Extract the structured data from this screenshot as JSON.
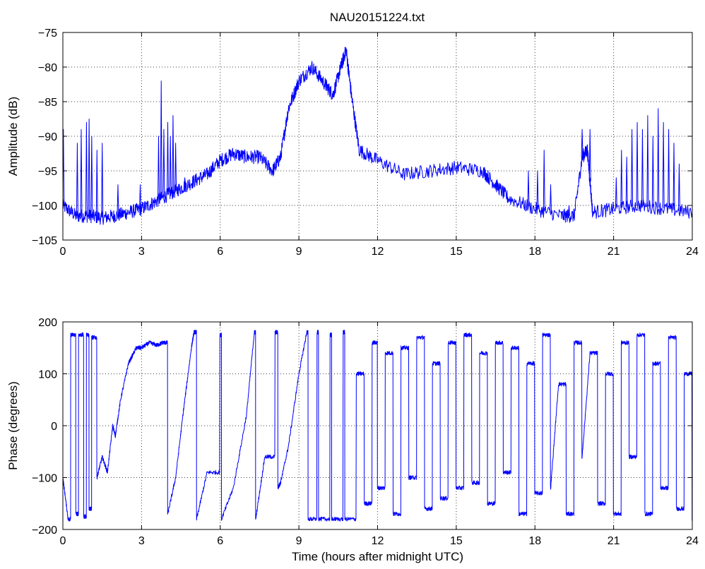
{
  "figure": {
    "title": "NAU20151224.txt",
    "line_color": "#0000ff"
  },
  "chart_data": [
    {
      "type": "line",
      "title": "NAU20151224.txt",
      "xlabel": "",
      "ylabel": "Amplitude (dB)",
      "xlim": [
        0,
        24
      ],
      "ylim": [
        -105,
        -75
      ],
      "xticks": [
        0,
        3,
        6,
        9,
        12,
        15,
        18,
        21,
        24
      ],
      "yticks": [
        -105,
        -100,
        -95,
        -90,
        -85,
        -80,
        -75
      ],
      "xtick_labels": [
        "0",
        "3",
        "6",
        "9",
        "12",
        "15",
        "18",
        "21",
        "24"
      ],
      "ytick_labels": [
        "−105",
        "−100",
        "−95",
        "−90",
        "−85",
        "−80",
        "−75"
      ],
      "grid": true,
      "series": [
        {
          "color": "#0000ff",
          "x": [
            0,
            0.5,
            1,
            1.5,
            2,
            2.5,
            3,
            3.5,
            4,
            4.5,
            5,
            5.5,
            6,
            6.5,
            7,
            7.5,
            8,
            8.3,
            8.6,
            9,
            9.5,
            10,
            10.3,
            10.6,
            10.8,
            11,
            11.3,
            12,
            13,
            14,
            15,
            16,
            16.5,
            17,
            18,
            19,
            19.5,
            19.8,
            20,
            20.2,
            21,
            22,
            23,
            24
          ],
          "y": [
            -100,
            -101.5,
            -101.5,
            -101.8,
            -101.5,
            -101,
            -100.5,
            -99.5,
            -98.5,
            -97.5,
            -96.5,
            -95.5,
            -93.5,
            -92.5,
            -93,
            -93,
            -95,
            -93,
            -86,
            -82,
            -80,
            -82.5,
            -84,
            -80,
            -77.5,
            -84,
            -92,
            -93.5,
            -95.5,
            -95,
            -94.5,
            -95,
            -97,
            -99,
            -100.5,
            -101.5,
            -101.5,
            -93,
            -92,
            -101,
            -100.5,
            -100,
            -100.5,
            -101
          ],
          "noise_band": 1,
          "spikes": [
            {
              "x": 0.02,
              "y": -89
            },
            {
              "x": 0.55,
              "y": -91
            },
            {
              "x": 0.7,
              "y": -89
            },
            {
              "x": 0.9,
              "y": -88
            },
            {
              "x": 1.0,
              "y": -87.5
            },
            {
              "x": 1.1,
              "y": -90
            },
            {
              "x": 1.3,
              "y": -92
            },
            {
              "x": 1.5,
              "y": -91
            },
            {
              "x": 2.1,
              "y": -97
            },
            {
              "x": 2.95,
              "y": -97
            },
            {
              "x": 3.65,
              "y": -90
            },
            {
              "x": 3.75,
              "y": -82
            },
            {
              "x": 3.85,
              "y": -89
            },
            {
              "x": 4.0,
              "y": -88
            },
            {
              "x": 4.1,
              "y": -90
            },
            {
              "x": 4.2,
              "y": -87
            },
            {
              "x": 4.3,
              "y": -91
            },
            {
              "x": 4.65,
              "y": -96
            },
            {
              "x": 17.75,
              "y": -95
            },
            {
              "x": 18.1,
              "y": -95
            },
            {
              "x": 18.35,
              "y": -92
            },
            {
              "x": 18.6,
              "y": -97
            },
            {
              "x": 19.3,
              "y": -100
            },
            {
              "x": 19.8,
              "y": -89
            },
            {
              "x": 20.1,
              "y": -89
            },
            {
              "x": 21.1,
              "y": -96
            },
            {
              "x": 21.3,
              "y": -92
            },
            {
              "x": 21.5,
              "y": -93
            },
            {
              "x": 21.7,
              "y": -89
            },
            {
              "x": 21.9,
              "y": -88
            },
            {
              "x": 22.1,
              "y": -89
            },
            {
              "x": 22.3,
              "y": -87
            },
            {
              "x": 22.5,
              "y": -90
            },
            {
              "x": 22.7,
              "y": -86
            },
            {
              "x": 22.9,
              "y": -88
            },
            {
              "x": 23.1,
              "y": -89
            },
            {
              "x": 23.3,
              "y": -91
            },
            {
              "x": 23.5,
              "y": -94
            }
          ]
        }
      ]
    },
    {
      "type": "line",
      "title": "",
      "xlabel": "Time (hours after midnight UTC)",
      "ylabel": "Phase (degrees)",
      "xlim": [
        0,
        24
      ],
      "ylim": [
        -200,
        200
      ],
      "xticks": [
        0,
        3,
        6,
        9,
        12,
        15,
        18,
        21,
        24
      ],
      "yticks": [
        -200,
        -100,
        0,
        100,
        200
      ],
      "xtick_labels": [
        "0",
        "3",
        "6",
        "9",
        "12",
        "15",
        "18",
        "21",
        "24"
      ],
      "ytick_labels": [
        "−200",
        "−100",
        "0",
        "100",
        "200"
      ],
      "grid": true,
      "series": [
        {
          "color": "#0000ff",
          "x": [
            0,
            0.2,
            0.3,
            0.5,
            0.6,
            0.8,
            0.9,
            1.0,
            1.1,
            1.3,
            1.5,
            1.7,
            1.9,
            2.0,
            2.2,
            2.5,
            2.8,
            3.0,
            3.3,
            3.6,
            3.8,
            4.0,
            4.3,
            4.6,
            4.9,
            5.0,
            5.1,
            5.5,
            6.0,
            6.05,
            6.5,
            7.0,
            7.3,
            7.35,
            7.7,
            8.1,
            8.2,
            8.3,
            8.6,
            9.0,
            9.3,
            9.35,
            9.7,
            9.75,
            10.2,
            10.25,
            10.7,
            10.75,
            11.2,
            11.5,
            11.8,
            12.0,
            12.3,
            12.6,
            12.9,
            13.2,
            13.5,
            13.8,
            14.1,
            14.4,
            14.7,
            15.0,
            15.3,
            15.6,
            15.9,
            16.2,
            16.5,
            16.8,
            17.1,
            17.4,
            17.7,
            18.0,
            18.3,
            18.6,
            18.9,
            19.2,
            19.5,
            19.8,
            20.1,
            20.4,
            20.7,
            21.0,
            21.3,
            21.6,
            21.9,
            22.2,
            22.5,
            22.8,
            23.1,
            23.4,
            23.7,
            24.0
          ],
          "y": [
            -100,
            -180,
            175,
            -170,
            175,
            -175,
            175,
            -160,
            170,
            -100,
            -60,
            -90,
            0,
            -20,
            50,
            120,
            150,
            150,
            160,
            155,
            160,
            -170,
            -100,
            30,
            150,
            180,
            -180,
            -90,
            175,
            -180,
            -120,
            20,
            180,
            -180,
            -60,
            180,
            -120,
            -110,
            -40,
            100,
            180,
            -180,
            180,
            -180,
            175,
            -180,
            180,
            -180,
            100,
            -150,
            160,
            -120,
            140,
            -170,
            150,
            -100,
            170,
            -160,
            120,
            -140,
            160,
            -120,
            175,
            -110,
            140,
            -150,
            160,
            -90,
            150,
            -170,
            120,
            -130,
            175,
            -120,
            80,
            -170,
            160,
            -60,
            140,
            -150,
            100,
            -170,
            160,
            -60,
            175,
            -170,
            120,
            -120,
            170,
            -160,
            100,
            -180
          ],
          "noise_band": 4
        }
      ]
    }
  ]
}
